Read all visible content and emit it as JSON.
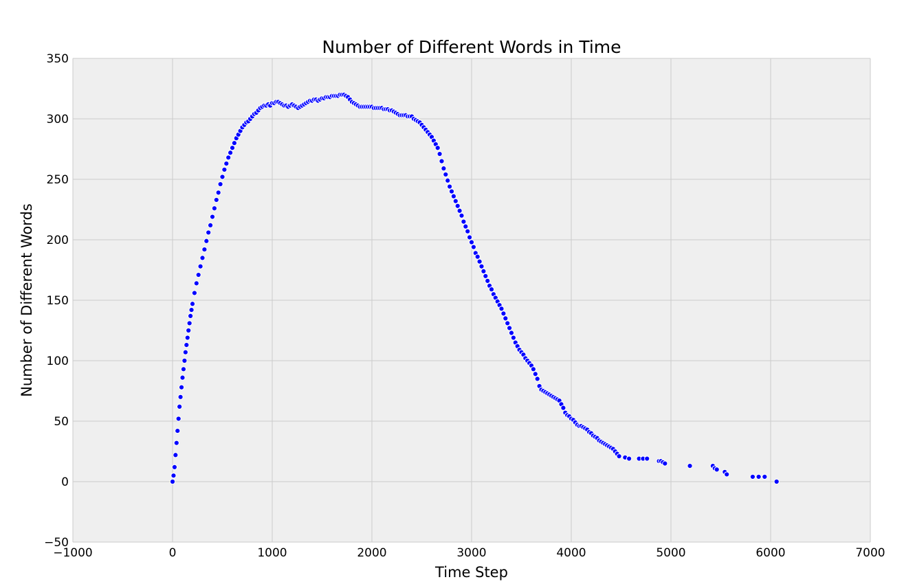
{
  "chart_data": {
    "type": "scatter",
    "title": "Number of Different Words in Time",
    "xlabel": "Time Step",
    "ylabel": "Number of Different Words",
    "xlim": [
      -1000,
      7000
    ],
    "ylim": [
      -50,
      350
    ],
    "xticks": [
      -1000,
      0,
      1000,
      2000,
      3000,
      4000,
      5000,
      6000,
      7000
    ],
    "yticks": [
      -50,
      0,
      50,
      100,
      150,
      200,
      250,
      300,
      350
    ],
    "xtick_labels": [
      "−1000",
      "0",
      "1000",
      "2000",
      "3000",
      "4000",
      "5000",
      "6000",
      "7000"
    ],
    "ytick_labels": [
      "−50",
      "0",
      "50",
      "100",
      "150",
      "200",
      "250",
      "300",
      "350"
    ],
    "grid": true,
    "background_color": "#efefef",
    "grid_color": "#cbcbcb",
    "marker_color": "#0000ff",
    "marker_edge_color": "#ffffff",
    "series": [
      {
        "points": [
          [
            0,
            0
          ],
          [
            10,
            5
          ],
          [
            20,
            12
          ],
          [
            30,
            22
          ],
          [
            40,
            32
          ],
          [
            50,
            42
          ],
          [
            60,
            52
          ],
          [
            70,
            62
          ],
          [
            80,
            70
          ],
          [
            90,
            78
          ],
          [
            100,
            86
          ],
          [
            110,
            93
          ],
          [
            120,
            100
          ],
          [
            130,
            107
          ],
          [
            140,
            113
          ],
          [
            150,
            119
          ],
          [
            160,
            125
          ],
          [
            170,
            131
          ],
          [
            180,
            137
          ],
          [
            190,
            142
          ],
          [
            200,
            147
          ],
          [
            220,
            156
          ],
          [
            240,
            164
          ],
          [
            260,
            171
          ],
          [
            280,
            178
          ],
          [
            300,
            185
          ],
          [
            320,
            192
          ],
          [
            340,
            199
          ],
          [
            360,
            206
          ],
          [
            380,
            212
          ],
          [
            400,
            219
          ],
          [
            420,
            226
          ],
          [
            440,
            233
          ],
          [
            460,
            239
          ],
          [
            480,
            246
          ],
          [
            500,
            252
          ],
          [
            520,
            258
          ],
          [
            540,
            263
          ],
          [
            560,
            268
          ],
          [
            580,
            272
          ],
          [
            600,
            276
          ],
          [
            620,
            280
          ],
          [
            640,
            284
          ],
          [
            660,
            287
          ],
          [
            680,
            290
          ],
          [
            700,
            293
          ],
          [
            720,
            295
          ],
          [
            740,
            297
          ],
          [
            760,
            298
          ],
          [
            780,
            300
          ],
          [
            800,
            302
          ],
          [
            820,
            304
          ],
          [
            840,
            305
          ],
          [
            860,
            307
          ],
          [
            880,
            309
          ],
          [
            900,
            310
          ],
          [
            920,
            311
          ],
          [
            940,
            311
          ],
          [
            960,
            312
          ],
          [
            980,
            311
          ],
          [
            1000,
            313
          ],
          [
            1020,
            313
          ],
          [
            1040,
            314
          ],
          [
            1060,
            314
          ],
          [
            1080,
            313
          ],
          [
            1100,
            312
          ],
          [
            1120,
            311
          ],
          [
            1140,
            311
          ],
          [
            1160,
            310
          ],
          [
            1180,
            311
          ],
          [
            1200,
            312
          ],
          [
            1220,
            311
          ],
          [
            1240,
            310
          ],
          [
            1260,
            309
          ],
          [
            1280,
            310
          ],
          [
            1300,
            311
          ],
          [
            1320,
            312
          ],
          [
            1340,
            313
          ],
          [
            1360,
            314
          ],
          [
            1380,
            315
          ],
          [
            1400,
            315
          ],
          [
            1420,
            316
          ],
          [
            1440,
            316
          ],
          [
            1460,
            315
          ],
          [
            1480,
            316
          ],
          [
            1500,
            317
          ],
          [
            1520,
            317
          ],
          [
            1540,
            318
          ],
          [
            1560,
            318
          ],
          [
            1580,
            318
          ],
          [
            1600,
            319
          ],
          [
            1620,
            319
          ],
          [
            1640,
            319
          ],
          [
            1660,
            319
          ],
          [
            1680,
            320
          ],
          [
            1700,
            320
          ],
          [
            1720,
            320
          ],
          [
            1740,
            319
          ],
          [
            1760,
            318
          ],
          [
            1780,
            316
          ],
          [
            1800,
            314
          ],
          [
            1820,
            313
          ],
          [
            1840,
            312
          ],
          [
            1860,
            311
          ],
          [
            1880,
            310
          ],
          [
            1900,
            310
          ],
          [
            1920,
            310
          ],
          [
            1940,
            310
          ],
          [
            1960,
            310
          ],
          [
            1980,
            310
          ],
          [
            2000,
            310
          ],
          [
            2020,
            309
          ],
          [
            2040,
            309
          ],
          [
            2060,
            309
          ],
          [
            2080,
            309
          ],
          [
            2100,
            309
          ],
          [
            2120,
            308
          ],
          [
            2140,
            308
          ],
          [
            2160,
            308
          ],
          [
            2180,
            307
          ],
          [
            2200,
            307
          ],
          [
            2220,
            306
          ],
          [
            2240,
            305
          ],
          [
            2260,
            304
          ],
          [
            2280,
            303
          ],
          [
            2300,
            303
          ],
          [
            2320,
            303
          ],
          [
            2340,
            303
          ],
          [
            2360,
            302
          ],
          [
            2380,
            302
          ],
          [
            2400,
            302
          ],
          [
            2420,
            300
          ],
          [
            2440,
            299
          ],
          [
            2460,
            298
          ],
          [
            2480,
            297
          ],
          [
            2500,
            295
          ],
          [
            2520,
            293
          ],
          [
            2540,
            291
          ],
          [
            2560,
            289
          ],
          [
            2580,
            287
          ],
          [
            2600,
            285
          ],
          [
            2620,
            282
          ],
          [
            2640,
            279
          ],
          [
            2660,
            276
          ],
          [
            2680,
            271
          ],
          [
            2700,
            265
          ],
          [
            2720,
            259
          ],
          [
            2740,
            254
          ],
          [
            2760,
            249
          ],
          [
            2780,
            244
          ],
          [
            2800,
            240
          ],
          [
            2820,
            236
          ],
          [
            2840,
            232
          ],
          [
            2860,
            228
          ],
          [
            2880,
            224
          ],
          [
            2900,
            220
          ],
          [
            2920,
            215
          ],
          [
            2940,
            211
          ],
          [
            2960,
            207
          ],
          [
            2980,
            202
          ],
          [
            3000,
            198
          ],
          [
            3020,
            194
          ],
          [
            3040,
            189
          ],
          [
            3060,
            186
          ],
          [
            3080,
            182
          ],
          [
            3100,
            178
          ],
          [
            3120,
            174
          ],
          [
            3140,
            170
          ],
          [
            3160,
            166
          ],
          [
            3180,
            162
          ],
          [
            3200,
            159
          ],
          [
            3220,
            155
          ],
          [
            3240,
            152
          ],
          [
            3260,
            149
          ],
          [
            3280,
            146
          ],
          [
            3300,
            143
          ],
          [
            3320,
            139
          ],
          [
            3340,
            135
          ],
          [
            3360,
            131
          ],
          [
            3380,
            127
          ],
          [
            3400,
            123
          ],
          [
            3420,
            119
          ],
          [
            3440,
            115
          ],
          [
            3460,
            112
          ],
          [
            3480,
            109
          ],
          [
            3500,
            107
          ],
          [
            3520,
            105
          ],
          [
            3540,
            102
          ],
          [
            3560,
            100
          ],
          [
            3580,
            98
          ],
          [
            3600,
            96
          ],
          [
            3620,
            93
          ],
          [
            3640,
            89
          ],
          [
            3660,
            85
          ],
          [
            3680,
            79
          ],
          [
            3700,
            76
          ],
          [
            3720,
            75
          ],
          [
            3740,
            74
          ],
          [
            3760,
            73
          ],
          [
            3780,
            72
          ],
          [
            3800,
            71
          ],
          [
            3820,
            70
          ],
          [
            3840,
            69
          ],
          [
            3860,
            68
          ],
          [
            3880,
            67
          ],
          [
            3900,
            64
          ],
          [
            3920,
            61
          ],
          [
            3940,
            57
          ],
          [
            3960,
            55
          ],
          [
            3980,
            54
          ],
          [
            4000,
            52
          ],
          [
            4020,
            51
          ],
          [
            4040,
            49
          ],
          [
            4060,
            47
          ],
          [
            4080,
            46
          ],
          [
            4100,
            46
          ],
          [
            4120,
            45
          ],
          [
            4140,
            44
          ],
          [
            4160,
            43
          ],
          [
            4180,
            41
          ],
          [
            4200,
            40
          ],
          [
            4220,
            38
          ],
          [
            4240,
            37
          ],
          [
            4260,
            36
          ],
          [
            4280,
            34
          ],
          [
            4300,
            33
          ],
          [
            4320,
            32
          ],
          [
            4340,
            31
          ],
          [
            4360,
            30
          ],
          [
            4380,
            29
          ],
          [
            4400,
            28
          ],
          [
            4420,
            27
          ],
          [
            4440,
            25
          ],
          [
            4460,
            23
          ],
          [
            4480,
            21
          ],
          [
            4540,
            20
          ],
          [
            4580,
            19
          ],
          [
            4680,
            19
          ],
          [
            4720,
            19
          ],
          [
            4760,
            19
          ],
          [
            4880,
            17
          ],
          [
            4900,
            17
          ],
          [
            4920,
            16
          ],
          [
            4940,
            15
          ],
          [
            5190,
            13
          ],
          [
            5420,
            13
          ],
          [
            5440,
            11
          ],
          [
            5460,
            10
          ],
          [
            5540,
            8
          ],
          [
            5560,
            6
          ],
          [
            5820,
            4
          ],
          [
            5880,
            4
          ],
          [
            5940,
            4
          ],
          [
            6060,
            0
          ]
        ]
      }
    ]
  }
}
